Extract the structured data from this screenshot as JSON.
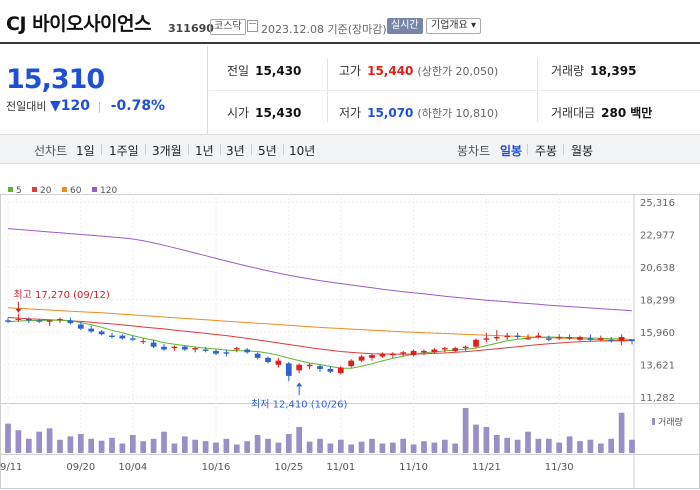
{
  "header": {
    "name": "CJ 바이오사이언스",
    "code": "311690",
    "market": "코스닥",
    "date": "2023.12.08 기준(장마감)",
    "realtime": "실시간",
    "company_btn": "기업개요 ▾"
  },
  "price": {
    "current": "15,310",
    "prev_label": "전일대비",
    "change": "▼120",
    "change_pct": "-0.78%",
    "sep": "|"
  },
  "stats": {
    "prev": {
      "k": "전일",
      "v": "15,430"
    },
    "open": {
      "k": "시가",
      "v": "15,430"
    },
    "high": {
      "k": "고가",
      "v": "15,440",
      "sub": "(상한가 20,050)"
    },
    "low": {
      "k": "저가",
      "v": "15,070",
      "sub": "(하한가 10,810)"
    },
    "volume": {
      "k": "거래량",
      "v": "18,395"
    },
    "amount": {
      "k": "거래대금",
      "v": "280",
      "unit": "백만"
    }
  },
  "rangebar": {
    "line_label": "선차트",
    "line_items": [
      "1일",
      "1주일",
      "3개월",
      "1년",
      "3년",
      "5년",
      "10년"
    ],
    "candle_label": "봉차트",
    "candle_items": [
      "일봉",
      "주봉",
      "월봉"
    ],
    "candle_active": "일봉"
  },
  "colors": {
    "up": "#e0201c",
    "down": "#2d62d3",
    "ma5": "#5cb531",
    "ma20": "#e03c3c",
    "ma60": "#f08c1e",
    "ma120": "#9b5cc9"
  },
  "chart_data": {
    "type": "candlestick",
    "legend": [
      {
        "name": "5",
        "color": "#5cb531"
      },
      {
        "name": "20",
        "color": "#e03c3c"
      },
      {
        "name": "60",
        "color": "#f08c1e"
      },
      {
        "name": "120",
        "color": "#9b5cc9"
      }
    ],
    "y_ticks": [
      "25,316",
      "22,977",
      "20,638",
      "18,299",
      "15,960",
      "13,621",
      "11,282"
    ],
    "ylim": [
      11282,
      25316
    ],
    "x_ticks": [
      {
        "label": "09/11",
        "i": 0
      },
      {
        "label": "09/20",
        "i": 7
      },
      {
        "label": "10/04",
        "i": 12
      },
      {
        "label": "10/16",
        "i": 20
      },
      {
        "label": "10/25",
        "i": 27
      },
      {
        "label": "11/01",
        "i": 32
      },
      {
        "label": "11/10",
        "i": 39
      },
      {
        "label": "11/21",
        "i": 46
      },
      {
        "label": "11/30",
        "i": 53
      }
    ],
    "annotations": {
      "high": "최고 17,270 (09/12)",
      "high_i": 1,
      "high_v": 17270,
      "low": "최저 12,410 (10/26)",
      "low_i": 28,
      "low_v": 12410
    },
    "volume_label": "거래량",
    "candles": [
      [
        16800,
        17000,
        16600,
        16700
      ],
      [
        16900,
        17270,
        16700,
        16900
      ],
      [
        16900,
        17000,
        16600,
        16800
      ],
      [
        16800,
        16900,
        16600,
        16700
      ],
      [
        16700,
        16800,
        16400,
        16800
      ],
      [
        16900,
        17000,
        16600,
        16900
      ],
      [
        16800,
        17000,
        16500,
        16600
      ],
      [
        16500,
        16700,
        16100,
        16200
      ],
      [
        16200,
        16400,
        15900,
        16000
      ],
      [
        16000,
        16100,
        15700,
        15800
      ],
      [
        15700,
        15900,
        15500,
        15600
      ],
      [
        15700,
        15800,
        15400,
        15500
      ],
      [
        15500,
        15700,
        15300,
        15400
      ],
      [
        15300,
        15500,
        15100,
        15300
      ],
      [
        15200,
        15400,
        14800,
        14900
      ],
      [
        14900,
        15100,
        14600,
        14700
      ],
      [
        14800,
        15000,
        14600,
        14900
      ],
      [
        14900,
        15000,
        14600,
        14700
      ],
      [
        14700,
        14900,
        14500,
        14800
      ],
      [
        14700,
        14900,
        14500,
        14600
      ],
      [
        14600,
        14700,
        14300,
        14400
      ],
      [
        14500,
        14700,
        14200,
        14400
      ],
      [
        14700,
        14900,
        14500,
        14800
      ],
      [
        14700,
        14800,
        14400,
        14500
      ],
      [
        14400,
        14500,
        14000,
        14100
      ],
      [
        14100,
        14200,
        13700,
        13800
      ],
      [
        13600,
        14100,
        13400,
        13900
      ],
      [
        13700,
        13800,
        12410,
        12800
      ],
      [
        13200,
        13700,
        13000,
        13600
      ],
      [
        13500,
        13700,
        13300,
        13600
      ],
      [
        13500,
        13600,
        13100,
        13300
      ],
      [
        13300,
        13500,
        13000,
        13100
      ],
      [
        13000,
        13500,
        12900,
        13400
      ],
      [
        13500,
        14000,
        13400,
        13900
      ],
      [
        13900,
        14300,
        13800,
        14200
      ],
      [
        14100,
        14400,
        13900,
        14300
      ],
      [
        14200,
        14500,
        14100,
        14400
      ],
      [
        14300,
        14500,
        14100,
        14400
      ],
      [
        14400,
        14600,
        14200,
        14500
      ],
      [
        14300,
        14700,
        14200,
        14600
      ],
      [
        14500,
        14700,
        14300,
        14600
      ],
      [
        14500,
        14800,
        14400,
        14700
      ],
      [
        14700,
        14900,
        14500,
        14800
      ],
      [
        14600,
        14900,
        14500,
        14800
      ],
      [
        14800,
        15000,
        14600,
        14900
      ],
      [
        14900,
        15500,
        14800,
        15400
      ],
      [
        15400,
        15900,
        15200,
        15500
      ],
      [
        15500,
        16100,
        15300,
        15600
      ],
      [
        15600,
        15900,
        15400,
        15700
      ],
      [
        15700,
        15900,
        15500,
        15600
      ],
      [
        15500,
        15800,
        15400,
        15500
      ],
      [
        15600,
        15900,
        15500,
        15700
      ],
      [
        15500,
        15700,
        15300,
        15400
      ],
      [
        15500,
        15800,
        15400,
        15600
      ],
      [
        15600,
        15800,
        15400,
        15500
      ],
      [
        15400,
        15700,
        15300,
        15600
      ],
      [
        15500,
        15800,
        15300,
        15400
      ],
      [
        15400,
        15700,
        15300,
        15500
      ],
      [
        15400,
        15600,
        15200,
        15300
      ],
      [
        15300,
        15800,
        15000,
        15600
      ],
      [
        15430,
        15440,
        15070,
        15310
      ]
    ],
    "volumes": [
      62,
      48,
      30,
      45,
      52,
      28,
      35,
      40,
      30,
      26,
      32,
      20,
      38,
      25,
      30,
      45,
      20,
      35,
      28,
      25,
      22,
      30,
      18,
      25,
      38,
      30,
      22,
      40,
      55,
      24,
      30,
      20,
      28,
      18,
      24,
      30,
      20,
      22,
      30,
      18,
      25,
      22,
      28,
      20,
      95,
      60,
      55,
      38,
      32,
      28,
      45,
      30,
      30,
      22,
      35,
      25,
      28,
      20,
      30,
      85,
      28
    ],
    "ma5": [
      16700,
      16750,
      16780,
      16790,
      16800,
      16820,
      16780,
      16640,
      16480,
      16300,
      16080,
      15900,
      15700,
      15520,
      15380,
      15200,
      15080,
      14980,
      14880,
      14800,
      14740,
      14660,
      14620,
      14600,
      14560,
      14440,
      14280,
      14080,
      13900,
      13720,
      13620,
      13480,
      13360,
      13350,
      13500,
      13680,
      13880,
      14060,
      14220,
      14360,
      14460,
      14530,
      14600,
      14660,
      14720,
      14800,
      14980,
      15150,
      15330,
      15440,
      15530,
      15580,
      15600,
      15580,
      15560,
      15540,
      15520,
      15510,
      15480,
      15460,
      15420
    ],
    "ma20": [
      17000,
      16960,
      16920,
      16880,
      16840,
      16800,
      16760,
      16720,
      16660,
      16600,
      16540,
      16470,
      16400,
      16320,
      16250,
      16180,
      16100,
      16020,
      15940,
      15860,
      15780,
      15700,
      15600,
      15500,
      15390,
      15280,
      15170,
      15060,
      14950,
      14840,
      14740,
      14640,
      14560,
      14490,
      14440,
      14400,
      14380,
      14370,
      14360,
      14370,
      14390,
      14420,
      14450,
      14500,
      14550,
      14610,
      14680,
      14750,
      14830,
      14900,
      14980,
      15050,
      15110,
      15170,
      15220,
      15260,
      15290,
      15310,
      15320,
      15330,
      15330
    ],
    "ma60": [
      17700,
      17660,
      17620,
      17580,
      17540,
      17500,
      17460,
      17420,
      17380,
      17340,
      17290,
      17240,
      17190,
      17140,
      17090,
      17040,
      16990,
      16940,
      16890,
      16840,
      16790,
      16740,
      16690,
      16640,
      16590,
      16540,
      16490,
      16440,
      16390,
      16340,
      16290,
      16250,
      16210,
      16170,
      16130,
      16090,
      16050,
      16010,
      15970,
      15940,
      15910,
      15880,
      15850,
      15820,
      15790,
      15760,
      15730,
      15700,
      15670,
      15640,
      15610,
      15580,
      15550,
      15520,
      15490,
      15460,
      15430,
      15400,
      15380,
      15360,
      15340
    ],
    "ma120": [
      23400,
      23340,
      23280,
      23220,
      23160,
      23100,
      23040,
      22980,
      22920,
      22860,
      22800,
      22730,
      22650,
      22520,
      22370,
      22200,
      22020,
      21830,
      21640,
      21450,
      21260,
      21070,
      20880,
      20700,
      20530,
      20360,
      20200,
      20050,
      19910,
      19780,
      19660,
      19550,
      19440,
      19340,
      19240,
      19140,
      19040,
      18950,
      18860,
      18780,
      18700,
      18620,
      18540,
      18460,
      18390,
      18320,
      18250,
      18190,
      18130,
      18070,
      18010,
      17950,
      17890,
      17840,
      17790,
      17740,
      17690,
      17640,
      17590,
      17540,
      17490
    ]
  }
}
